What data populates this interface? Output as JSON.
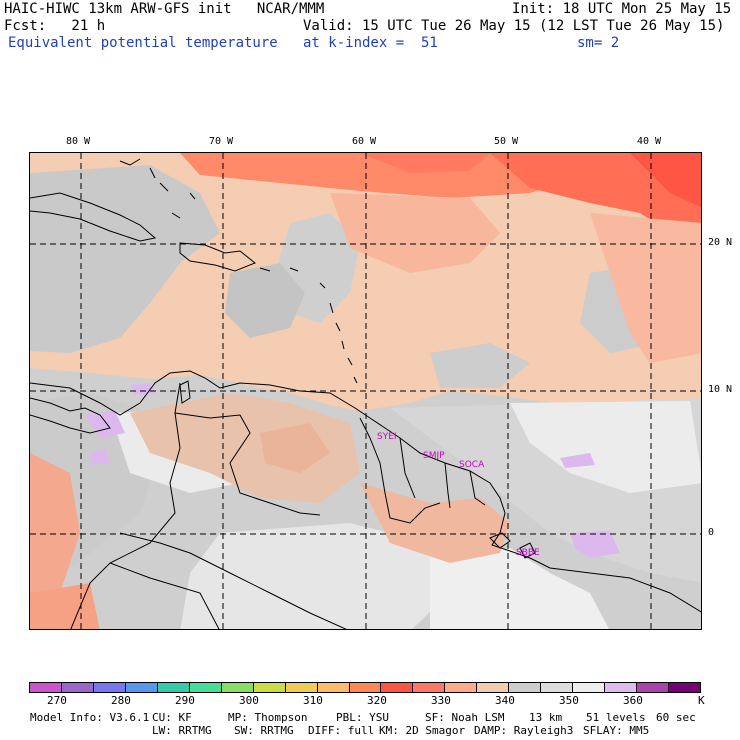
{
  "header": {
    "line1_left": "HAIC-HIWC 13km ARW-GFS init   NCAR/MMM",
    "line1_right": "Init: 18 UTC Mon 25 May 15",
    "line2_left": "Fcst:   21 h",
    "line2_right": "Valid: 15 UTC Tue 26 May 15 (12 LST Tue 26 May 15)",
    "line3_left": "Equivalent potential temperature",
    "line3_mid": "at k-index =  51",
    "line3_right": "sm= 2"
  },
  "map": {
    "lon_labels": [
      "80 W",
      "70 W",
      "60 W",
      "50 W",
      "40 W"
    ],
    "lat_labels": [
      "20 N",
      "10 N",
      "0"
    ],
    "stations": [
      "SYEI",
      "SMJP",
      "SOCA",
      "SBBE"
    ]
  },
  "colorbar": {
    "colors": [
      "#cc55cc",
      "#9966cc",
      "#7777ee",
      "#5599ee",
      "#33ccaa",
      "#44dd99",
      "#88dd66",
      "#ccdd44",
      "#eecc55",
      "#ffbb66",
      "#ff8855",
      "#ff5544",
      "#ff7766",
      "#ffaa88",
      "#f3ccaf",
      "#cccccc",
      "#dddddd",
      "#eeeeee",
      "#ddbbee",
      "#aa44aa",
      "#770077"
    ],
    "tick_labels": [
      "270",
      "280",
      "290",
      "300",
      "310",
      "320",
      "330",
      "340",
      "350",
      "360"
    ],
    "unit": "K"
  },
  "footer": {
    "row1": [
      "Model Info: V3.6.1",
      "CU: KF",
      "MP: Thompson",
      "PBL: YSU",
      "SF: Noah LSM",
      "13 km",
      "51 levels",
      "60 sec"
    ],
    "row2": [
      "LW: RRTMG",
      "SW: RRTMG",
      "DIFF: full",
      "KM: 2D Smagor",
      "DAMP: Rayleigh3",
      "SFLAY: MM5"
    ]
  }
}
